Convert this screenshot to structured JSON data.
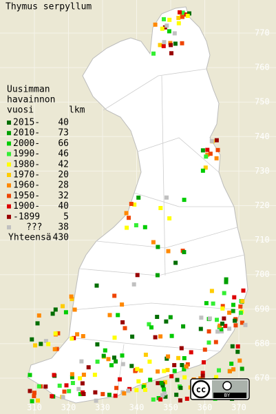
{
  "title": "Thymus serpyllum",
  "legend": {
    "heading": [
      "Uusimman",
      "havainnon",
      "vuosi"
    ],
    "count_heading": "lkm",
    "items": [
      {
        "label": "2015-",
        "count": 40,
        "color": "#006e00"
      },
      {
        "label": "2010-",
        "count": 73,
        "color": "#00a000"
      },
      {
        "label": "2000-",
        "count": 66,
        "color": "#00cc00"
      },
      {
        "label": "1990-",
        "count": 46,
        "color": "#33ee33"
      },
      {
        "label": "1980-",
        "count": 42,
        "color": "#ffff00"
      },
      {
        "label": "1970-",
        "count": 20,
        "color": "#ffcc00"
      },
      {
        "label": "1960-",
        "count": 28,
        "color": "#ff8800"
      },
      {
        "label": "1950-",
        "count": 32,
        "color": "#ee4400"
      },
      {
        "label": "1900-",
        "count": 40,
        "color": "#dd0000"
      },
      {
        "label": "-1899",
        "count": 5,
        "color": "#990000"
      },
      {
        "label": "???",
        "count": 38,
        "color": "#c0c0c0"
      }
    ],
    "total_label": "Yhteensä",
    "total": 430
  },
  "x_axis": {
    "ticks": [
      310,
      320,
      330,
      340,
      350,
      360,
      370
    ]
  },
  "y_axis": {
    "ticks": [
      670,
      680,
      690,
      700,
      710,
      720,
      730,
      740,
      750,
      760,
      770
    ]
  },
  "license": {
    "cc": "cc",
    "by": "BY"
  }
}
